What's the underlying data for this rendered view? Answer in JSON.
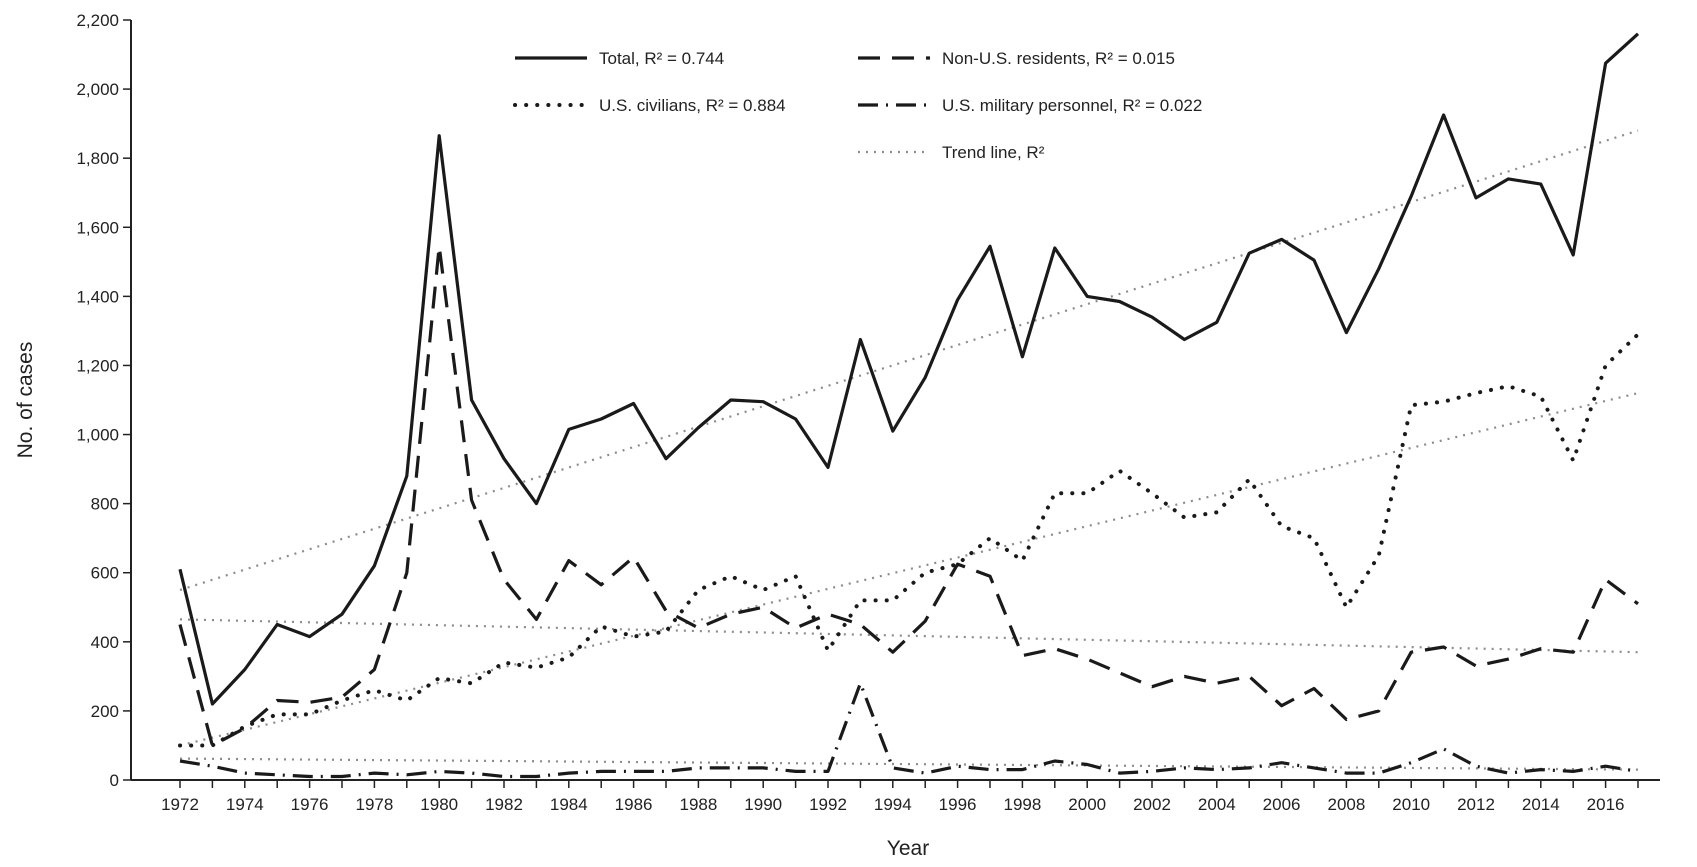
{
  "chart_data": {
    "type": "line",
    "xlabel": "Year",
    "ylabel": "No. of cases",
    "xlim": [
      1972,
      2017
    ],
    "ylim": [
      0,
      2200
    ],
    "x_ticks": [
      "1972",
      "1974",
      "1976",
      "1978",
      "1980",
      "1982",
      "1984",
      "1986",
      "1988",
      "1990",
      "1992",
      "1994",
      "1996",
      "1998",
      "2000",
      "2002",
      "2004",
      "2006",
      "2008",
      "2010",
      "2012",
      "2014",
      "2016"
    ],
    "y_ticks": [
      "0",
      "200",
      "400",
      "600",
      "800",
      "1,000",
      "1,200",
      "1,400",
      "1,600",
      "1,800",
      "2,000",
      "2,200"
    ],
    "grid": false,
    "legend_position": "top",
    "colors": {
      "series": "#1a1a1a",
      "trend": "#8c8c8c",
      "axis": "#222222"
    },
    "x": [
      1972,
      1973,
      1974,
      1975,
      1976,
      1977,
      1978,
      1979,
      1980,
      1981,
      1982,
      1983,
      1984,
      1985,
      1986,
      1987,
      1988,
      1989,
      1990,
      1991,
      1992,
      1993,
      1994,
      1995,
      1996,
      1997,
      1998,
      1999,
      2000,
      2001,
      2002,
      2003,
      2004,
      2005,
      2006,
      2007,
      2008,
      2009,
      2010,
      2011,
      2012,
      2013,
      2014,
      2015,
      2016,
      2017
    ],
    "series": [
      {
        "name": "Total, R² = 0.744",
        "style": "solid",
        "values": [
          610,
          220,
          320,
          450,
          415,
          480,
          620,
          880,
          1865,
          1100,
          930,
          800,
          1015,
          1045,
          1090,
          930,
          1020,
          1100,
          1095,
          1045,
          905,
          1275,
          1010,
          1165,
          1390,
          1545,
          1225,
          1540,
          1400,
          1385,
          1340,
          1275,
          1325,
          1525,
          1565,
          1505,
          1295,
          1480,
          1690,
          1925,
          1685,
          1740,
          1725,
          1520,
          2075,
          2160
        ]
      },
      {
        "name": "Non-U.S. residents, R² = 0.015",
        "style": "dashed",
        "values": [
          450,
          100,
          150,
          230,
          225,
          240,
          320,
          600,
          1545,
          810,
          580,
          465,
          635,
          565,
          645,
          490,
          440,
          480,
          500,
          440,
          480,
          450,
          370,
          460,
          625,
          590,
          360,
          380,
          350,
          310,
          270,
          300,
          280,
          300,
          215,
          265,
          175,
          200,
          370,
          385,
          330,
          350,
          380,
          370,
          580,
          510
        ]
      },
      {
        "name": "U.S. civilians, R² = 0.884",
        "style": "dotted",
        "values": [
          100,
          100,
          155,
          190,
          190,
          230,
          260,
          230,
          295,
          280,
          340,
          325,
          355,
          445,
          415,
          430,
          550,
          590,
          550,
          590,
          375,
          520,
          520,
          600,
          625,
          700,
          635,
          830,
          830,
          895,
          830,
          760,
          775,
          870,
          735,
          700,
          500,
          650,
          1085,
          1095,
          1120,
          1140,
          1110,
          925,
          1200,
          1290
        ]
      },
      {
        "name": "U.S. military personnel, R² = 0.022",
        "style": "dashdot",
        "values": [
          55,
          40,
          20,
          15,
          10,
          10,
          20,
          15,
          25,
          20,
          10,
          10,
          20,
          25,
          25,
          25,
          35,
          35,
          35,
          25,
          25,
          280,
          35,
          20,
          40,
          30,
          30,
          55,
          45,
          20,
          25,
          35,
          30,
          35,
          50,
          35,
          20,
          20,
          50,
          90,
          40,
          20,
          30,
          25,
          40,
          25
        ]
      }
    ],
    "trend_lines": [
      {
        "name": "Trend line, R²",
        "from": [
          1972,
          550
        ],
        "to": [
          2017,
          1880
        ]
      },
      {
        "from": [
          1972,
          100
        ],
        "to": [
          2017,
          1120
        ]
      },
      {
        "from": [
          1972,
          465
        ],
        "to": [
          2017,
          370
        ]
      },
      {
        "from": [
          1972,
          62
        ],
        "to": [
          2017,
          30
        ]
      }
    ],
    "legend": [
      {
        "label": "Total, R² = 0.744",
        "style": "solid"
      },
      {
        "label": "Non-U.S. residents, R² = 0.015",
        "style": "dashed"
      },
      {
        "label": "U.S. civilians, R² = 0.884",
        "style": "dotted"
      },
      {
        "label": "U.S. military personnel, R² = 0.022",
        "style": "dashdot"
      },
      {
        "label": "Trend line, R²",
        "style": "trend"
      }
    ]
  }
}
